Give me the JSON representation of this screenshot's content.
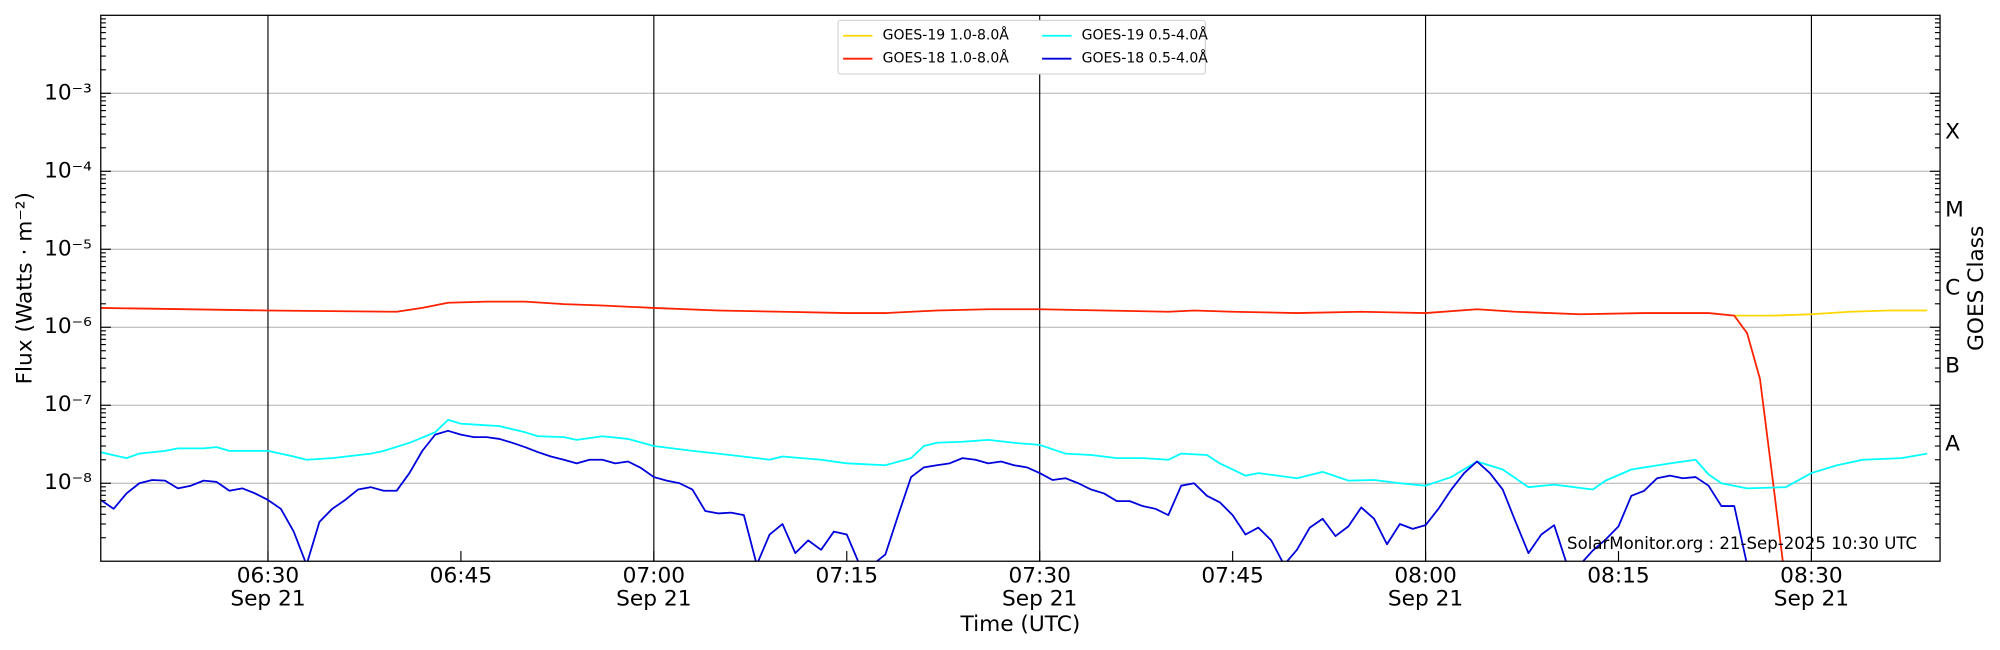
{
  "chart_data": {
    "type": "line",
    "xlabel": "Time (UTC)",
    "ylabel": "Flux (Watts · m⁻²)",
    "y2label": "GOES Class",
    "annotation": "SolarMonitor.org : 21-Sep-2025 10:30 UTC",
    "ylog": true,
    "grid": true,
    "legend": "upper center",
    "xlim": [
      "06:17",
      "08:40"
    ],
    "xticks": [
      {
        "value": "06:30",
        "label": "06:30",
        "date": "Sep 21"
      },
      "06:45",
      {
        "value": "07:00",
        "label": "07:00",
        "date": "Sep 21"
      },
      "07:15",
      {
        "value": "07:30",
        "label": "07:30",
        "date": "Sep 21"
      },
      "07:45",
      {
        "value": "08:00",
        "label": "08:00",
        "date": "Sep 21"
      },
      "08:15",
      {
        "value": "08:30",
        "label": "08:30",
        "date": "Sep 21"
      }
    ],
    "ylim": [
      1e-09,
      0.01
    ],
    "yticks": [
      {
        "value": 1e-08,
        "label": "10⁻⁸"
      },
      {
        "value": 1e-07,
        "label": "10⁻⁷"
      },
      {
        "value": 1e-06,
        "label": "10⁻⁶"
      },
      {
        "value": 1e-05,
        "label": "10⁻⁵"
      },
      {
        "value": 0.0001,
        "label": "10⁻⁴"
      },
      {
        "value": 0.001,
        "label": "10⁻³"
      }
    ],
    "y2lim": [
      1e-09,
      0.01
    ],
    "y2ticks": [
      {
        "value": 3.16e-08,
        "label": "A"
      },
      {
        "value": 3.16e-07,
        "label": "B"
      },
      {
        "value": 3.16e-06,
        "label": "C"
      },
      {
        "value": 3.16e-05,
        "label": "M"
      },
      {
        "value": 0.000316,
        "label": "X"
      }
    ],
    "series": [
      {
        "name": "GOES-19 1.0-8.0Å",
        "color": "#ffd700",
        "x": [
          "08:24",
          "08:27",
          "08:30",
          "08:33",
          "08:36",
          "08:39"
        ],
        "values": [
          1.41e-06,
          1.41e-06,
          1.47e-06,
          1.58e-06,
          1.64e-06,
          1.64e-06
        ]
      },
      {
        "name": "GOES-18 1.0-8.0Å",
        "color": "#ff2200",
        "x": [
          "06:17",
          "06:30",
          "06:40",
          "06:42",
          "06:44",
          "06:47",
          "06:50",
          "06:53",
          "06:56",
          "07:00",
          "07:05",
          "07:10",
          "07:15",
          "07:18",
          "07:22",
          "07:26",
          "07:30",
          "07:35",
          "07:40",
          "07:42",
          "07:45",
          "07:50",
          "07:55",
          "08:00",
          "08:04",
          "08:07",
          "08:12",
          "08:17",
          "08:22",
          "08:24",
          "08:25",
          "08:26",
          "08:27",
          "08:28"
        ],
        "values": [
          1.77e-06,
          1.64e-06,
          1.58e-06,
          1.77e-06,
          2.06e-06,
          2.13e-06,
          2.13e-06,
          1.98e-06,
          1.9e-06,
          1.77e-06,
          1.64e-06,
          1.58e-06,
          1.52e-06,
          1.52e-06,
          1.64e-06,
          1.7e-06,
          1.7e-06,
          1.64e-06,
          1.58e-06,
          1.64e-06,
          1.58e-06,
          1.52e-06,
          1.58e-06,
          1.52e-06,
          1.7e-06,
          1.58e-06,
          1.47e-06,
          1.52e-06,
          1.52e-06,
          1.41e-06,
          8.4e-07,
          2.17e-07,
          1.08e-08,
          5e-10
        ]
      },
      {
        "name": "GOES-19 0.5-4.0Å",
        "color": "#00ffff",
        "x": [
          "06:17",
          "06:19",
          "06:20",
          "06:22",
          "06:23",
          "06:25",
          "06:26",
          "06:27",
          "06:30",
          "06:32",
          "06:33",
          "06:35",
          "06:38",
          "06:39",
          "06:41",
          "06:43",
          "06:44",
          "06:45",
          "06:48",
          "06:50",
          "06:51",
          "06:53",
          "06:54",
          "06:56",
          "06:58",
          "07:00",
          "07:03",
          "07:05",
          "07:08",
          "07:09",
          "07:10",
          "07:13",
          "07:15",
          "07:18",
          "07:20",
          "07:21",
          "07:22",
          "07:24",
          "07:26",
          "07:28",
          "07:30",
          "07:32",
          "07:34",
          "07:36",
          "07:38",
          "07:40",
          "07:41",
          "07:43",
          "07:44",
          "07:46",
          "07:47",
          "07:50",
          "07:52",
          "07:54",
          "07:56",
          "07:58",
          "08:00",
          "08:02",
          "08:04",
          "08:06",
          "08:08",
          "08:10",
          "08:13",
          "08:14",
          "08:16",
          "08:19",
          "08:21",
          "08:22",
          "08:23",
          "08:25",
          "08:28",
          "08:30",
          "08:32",
          "08:34",
          "08:37",
          "08:39"
        ],
        "values": [
          2.5e-08,
          2.1e-08,
          2.4e-08,
          2.6e-08,
          2.8e-08,
          2.8e-08,
          2.9e-08,
          2.6e-08,
          2.6e-08,
          2.2e-08,
          2e-08,
          2.1e-08,
          2.4e-08,
          2.6e-08,
          3.3e-08,
          4.5e-08,
          6.5e-08,
          5.8e-08,
          5.4e-08,
          4.5e-08,
          4e-08,
          3.9e-08,
          3.6e-08,
          4e-08,
          3.7e-08,
          3e-08,
          2.6e-08,
          2.4e-08,
          2.1e-08,
          2e-08,
          2.2e-08,
          2e-08,
          1.8e-08,
          1.7e-08,
          2.1e-08,
          3e-08,
          3.3e-08,
          3.4e-08,
          3.6e-08,
          3.3e-08,
          3.1e-08,
          2.4e-08,
          2.3e-08,
          2.1e-08,
          2.1e-08,
          2e-08,
          2.4e-08,
          2.3e-08,
          1.8e-08,
          1.25e-08,
          1.35e-08,
          1.16e-08,
          1.4e-08,
          1.08e-08,
          1.1e-08,
          1e-08,
          9.3e-09,
          1.2e-08,
          1.9e-08,
          1.5e-08,
          8.9e-09,
          9.6e-09,
          8.3e-09,
          1.08e-08,
          1.5e-08,
          1.8e-08,
          2e-08,
          1.3e-08,
          1e-08,
          8.6e-09,
          8.9e-09,
          1.35e-08,
          1.7e-08,
          2e-08,
          2.1e-08,
          2.4e-08
        ]
      },
      {
        "name": "GOES-18 0.5-4.0Å",
        "color": "#0000dd",
        "x": [
          "06:17",
          "06:18",
          "06:19",
          "06:20",
          "06:21",
          "06:22",
          "06:23",
          "06:24",
          "06:25",
          "06:26",
          "06:27",
          "06:28",
          "06:29",
          "06:30",
          "06:31",
          "06:32",
          "06:33",
          "06:34",
          "06:35",
          "06:36",
          "06:37",
          "06:38",
          "06:39",
          "06:40",
          "06:41",
          "06:42",
          "06:43",
          "06:44",
          "06:45",
          "06:46",
          "06:47",
          "06:48",
          "06:49",
          "06:50",
          "06:51",
          "06:52",
          "06:53",
          "06:54",
          "06:55",
          "06:56",
          "06:57",
          "06:58",
          "06:59",
          "07:00",
          "07:01",
          "07:02",
          "07:03",
          "07:04",
          "07:05",
          "07:06",
          "07:07",
          "07:08",
          "07:09",
          "07:10",
          "07:11",
          "07:12",
          "07:13",
          "07:14",
          "07:15",
          "07:16",
          "07:17",
          "07:18",
          "07:19",
          "07:20",
          "07:21",
          "07:22",
          "07:23",
          "07:24",
          "07:25",
          "07:26",
          "07:27",
          "07:28",
          "07:29",
          "07:30",
          "07:31",
          "07:32",
          "07:33",
          "07:34",
          "07:35",
          "07:36",
          "07:37",
          "07:38",
          "07:39",
          "07:40",
          "07:41",
          "07:42",
          "07:43",
          "07:44",
          "07:45",
          "07:46",
          "07:47",
          "07:48",
          "07:49",
          "07:50",
          "07:51",
          "07:52",
          "07:53",
          "07:54",
          "07:55",
          "07:56",
          "07:57",
          "07:58",
          "07:59",
          "08:00",
          "08:01",
          "08:02",
          "08:03",
          "08:04",
          "08:05",
          "08:06",
          "08:07",
          "08:08",
          "08:09",
          "08:10",
          "08:11",
          "08:12",
          "08:13",
          "08:14",
          "08:15",
          "08:16",
          "08:17",
          "08:18",
          "08:19",
          "08:20",
          "08:21",
          "08:22",
          "08:23",
          "08:24",
          "08:25"
        ],
        "values": [
          6.1e-09,
          4.7e-09,
          7.4e-09,
          1e-08,
          1.1e-08,
          1.08e-08,
          8.6e-09,
          9.3e-09,
          1.08e-08,
          1.04e-08,
          8e-09,
          8.6e-09,
          7.4e-09,
          6.1e-09,
          4.7e-09,
          2.4e-09,
          9e-10,
          3.2e-09,
          4.7e-09,
          6.1e-09,
          8.3e-09,
          8.9e-09,
          8e-09,
          8e-09,
          1.35e-08,
          2.6e-08,
          4.2e-08,
          4.7e-08,
          4.2e-08,
          3.9e-08,
          3.9e-08,
          3.7e-08,
          3.3e-08,
          2.9e-08,
          2.5e-08,
          2.2e-08,
          2e-08,
          1.8e-08,
          2e-08,
          2e-08,
          1.8e-08,
          1.9e-08,
          1.57e-08,
          1.2e-08,
          1.08e-08,
          1e-08,
          8.3e-09,
          4.4e-09,
          4.1e-09,
          4.2e-09,
          3.9e-09,
          9e-10,
          2.2e-09,
          3e-09,
          1.27e-09,
          1.85e-09,
          1.4e-09,
          2.4e-09,
          2.2e-09,
          9e-10,
          9e-10,
          1.22e-09,
          3.9e-09,
          1.2e-08,
          1.6e-08,
          1.7e-08,
          1.8e-08,
          2.1e-08,
          2e-08,
          1.8e-08,
          1.9e-08,
          1.7e-08,
          1.6e-08,
          1.35e-08,
          1.1e-08,
          1.16e-08,
          1e-08,
          8.3e-09,
          7.4e-09,
          5.9e-09,
          5.9e-09,
          5.1e-09,
          4.7e-09,
          3.9e-09,
          9.3e-09,
          1e-08,
          6.9e-09,
          5.7e-09,
          3.9e-09,
          2.2e-09,
          2.7e-09,
          1.85e-09,
          9e-10,
          1.4e-09,
          2.7e-09,
          3.5e-09,
          2.1e-09,
          2.8e-09,
          4.9e-09,
          3.5e-09,
          1.65e-09,
          3e-09,
          2.6e-09,
          2.9e-09,
          4.7e-09,
          8.3e-09,
          1.35e-08,
          1.9e-08,
          1.35e-08,
          8.3e-09,
          3.2e-09,
          1.27e-09,
          2.2e-09,
          2.9e-09,
          9e-10,
          9e-10,
          1.37e-09,
          1.9e-09,
          2.8e-09,
          6.9e-09,
          8e-09,
          1.16e-08,
          1.25e-08,
          1.16e-08,
          1.2e-08,
          9.3e-09,
          5.1e-09,
          5.1e-09,
          9e-10
        ]
      }
    ]
  }
}
